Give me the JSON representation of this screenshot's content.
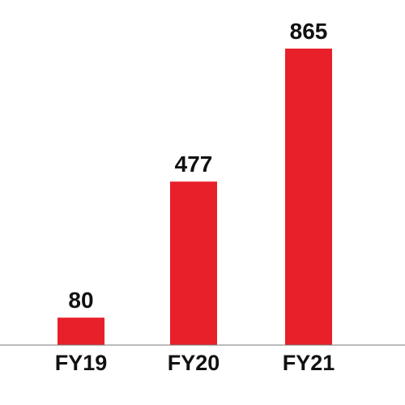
{
  "colors": {
    "bar": "#e8202a",
    "axis": "#777777",
    "text": "#111111",
    "background": "#ffffff"
  },
  "chart_data": {
    "type": "bar",
    "title": "",
    "xlabel": "",
    "ylabel": "",
    "categories": [
      "FY19",
      "FY20",
      "FY21"
    ],
    "values": [
      80,
      477,
      865
    ],
    "data_labels": [
      "80",
      "477",
      "865"
    ],
    "y_axis_visible": false,
    "grid": false,
    "legend": "none"
  }
}
